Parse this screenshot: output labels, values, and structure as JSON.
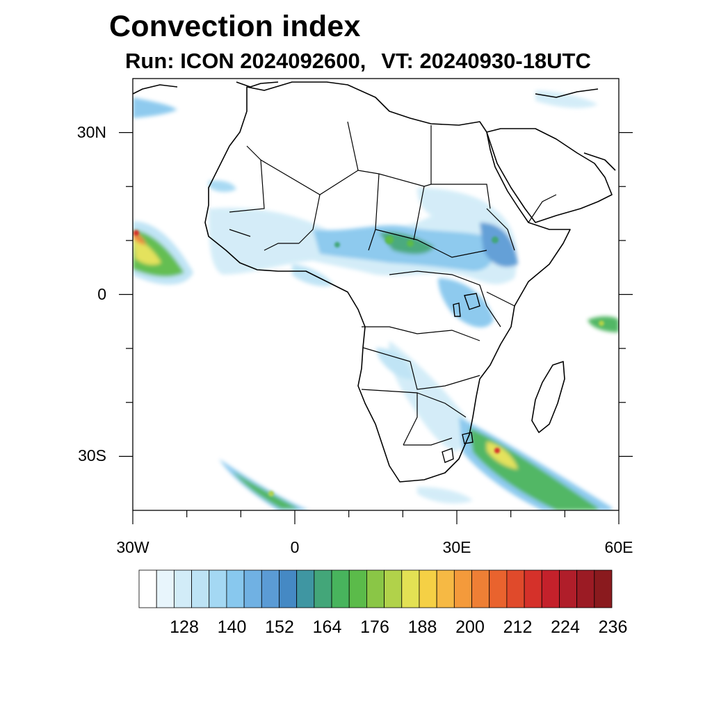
{
  "title": "Convection index",
  "subtitle": {
    "run": "Run: ICON 2024092600,",
    "valid_time": "VT: 20240930-18UTC"
  },
  "axes": {
    "lon_extent": [
      -30,
      60
    ],
    "lat_extent": [
      -40,
      40
    ],
    "lat_ticks": [
      {
        "value": 30,
        "label": "30N"
      },
      {
        "value": 0,
        "label": "0"
      },
      {
        "value": -30,
        "label": "30S"
      }
    ],
    "lon_ticks": [
      {
        "value": -30,
        "label": "30W"
      },
      {
        "value": 0,
        "label": "0"
      },
      {
        "value": 30,
        "label": "30E"
      },
      {
        "value": 60,
        "label": "60E"
      }
    ]
  },
  "colorbar": {
    "colors": [
      "#ffffff",
      "#e8f5fc",
      "#d2ecf8",
      "#bde3f5",
      "#a4d8f3",
      "#88c8ee",
      "#70b1e3",
      "#5b9bd5",
      "#4589c4",
      "#3f96a2",
      "#43a679",
      "#48b45d",
      "#5bbb4a",
      "#8ac646",
      "#b1d24a",
      "#e3e154",
      "#f5d045",
      "#f6b944",
      "#f49a3b",
      "#ee7f35",
      "#e9632e",
      "#e04a2b",
      "#d5312a",
      "#c4212b",
      "#b01e2a",
      "#9b1b24",
      "#8a1a1e"
    ],
    "labels": [
      "128",
      "140",
      "152",
      "164",
      "176",
      "188",
      "200",
      "212",
      "224",
      "236"
    ],
    "label_positions": [
      2,
      5,
      8,
      11,
      14,
      17,
      20,
      23,
      26,
      29
    ]
  },
  "map_layer": {
    "description_names": [
      "africa-coastline",
      "country-borders",
      "convection-shading"
    ]
  }
}
